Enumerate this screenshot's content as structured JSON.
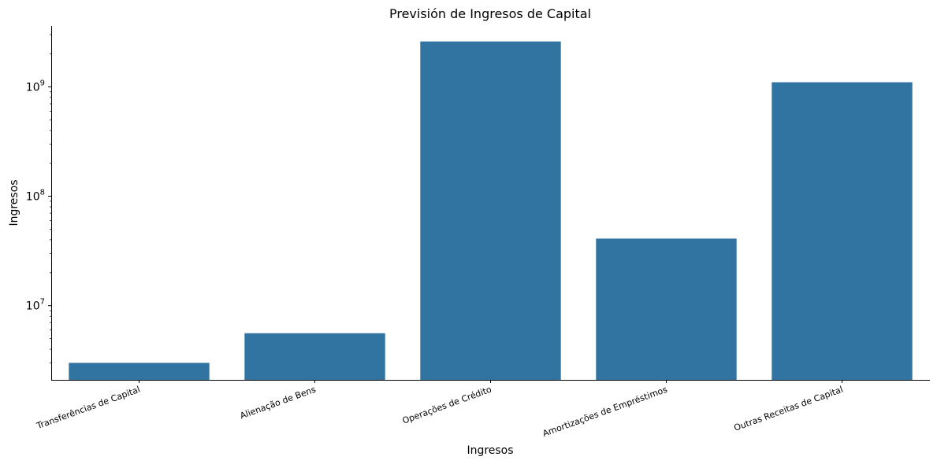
{
  "chart_data": {
    "type": "bar",
    "title": "Previsión de Ingresos de Capital",
    "xlabel": "Ingresos",
    "ylabel": "Ingresos",
    "yscale": "log",
    "ylim": [
      2100000,
      3600000000
    ],
    "yticks": [
      {
        "value": 10000000,
        "base": "10",
        "exp": "7"
      },
      {
        "value": 100000000,
        "base": "10",
        "exp": "8"
      },
      {
        "value": 1000000000,
        "base": "10",
        "exp": "9"
      }
    ],
    "categories": [
      "Transferências de Capital",
      "Alienação de Bens",
      "Operações de Crédito",
      "Amortizações de Empréstimos",
      "Outras Receitas de Capital"
    ],
    "values": [
      3000000,
      5600000,
      2600000000,
      41000000,
      1100000000
    ],
    "bar_color": "#3274a1",
    "grid": false,
    "legend": "none"
  }
}
